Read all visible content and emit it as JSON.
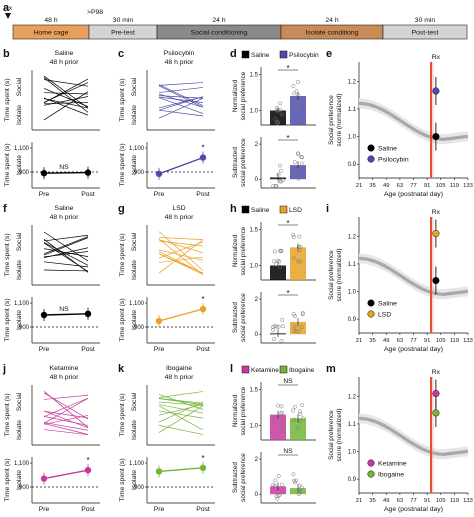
{
  "timeline": {
    "rx": "Rx",
    "p98": ">P98",
    "segments": [
      {
        "duration": "48 h",
        "label": "Home cage",
        "color": "#e8a05a"
      },
      {
        "duration": "30 min",
        "label": "Pre-test",
        "color": "#d4d4d4"
      },
      {
        "duration": "24 h",
        "label": "Social conditioning",
        "color": "#8a8a8a"
      },
      {
        "duration": "24 h",
        "label": "Isolate conditiong",
        "color": "#c98b57"
      },
      {
        "duration": "30 min",
        "label": "Post-test",
        "color": "#d4d4d4"
      }
    ]
  },
  "panel_letters": [
    "a",
    "b",
    "c",
    "d",
    "e",
    "f",
    "g",
    "h",
    "i",
    "j",
    "k",
    "l",
    "m"
  ],
  "common": {
    "top_ylabel": "Time spent (s)",
    "social": "Social",
    "isolate": "Isolate",
    "pre": "Pre",
    "post": "Post",
    "ns": "NS",
    "star": "*",
    "norm_ylabel": [
      "Normalized",
      "social preference"
    ],
    "sub_ylabel": [
      "Subtracted",
      "social preference"
    ],
    "bottom_ticks": [
      "1,100",
      "900"
    ],
    "bar_tick_top": [
      "1.5",
      "1.0"
    ],
    "bar_tick_bot": [
      "2",
      "0"
    ],
    "ylabel_sp": [
      "Social preference",
      "score (normalized)"
    ],
    "xlabel": "Age (postnatal day)",
    "x_ticks": [
      "21",
      "35",
      "49",
      "63",
      "77",
      "91",
      "105",
      "119",
      "133"
    ],
    "y_ticks": [
      "1.2",
      "1.1",
      "1.0",
      "0.9"
    ]
  },
  "rows": [
    {
      "left": {
        "title": [
          "Saline",
          "48 h prior"
        ],
        "color": "#000000",
        "pre": 890,
        "post": 895,
        "sig": "ns"
      },
      "right": {
        "title": [
          "Psilocybin",
          "48 h prior"
        ],
        "color": "#4d4bab",
        "pre": 885,
        "post": 1020,
        "sig": "star"
      },
      "bars": {
        "legend": [
          "Saline",
          "Psilocybin"
        ],
        "colors": [
          "#000000",
          "#4d4bab"
        ],
        "norm": [
          1.0,
          1.2
        ],
        "sub": [
          0.1,
          0.8
        ],
        "sig_norm": "star",
        "sig_sub": "star"
      },
      "scatter": {
        "chart_type": "scatter",
        "points": [
          {
            "name": "Saline",
            "age": 100,
            "score": 1.0,
            "color": "#000000"
          },
          {
            "name": "Psilocybin",
            "age": 100,
            "score": 1.165,
            "color": "#4d4bab"
          }
        ],
        "rx": "Rx",
        "ylim": [
          0.85,
          1.27
        ],
        "xlim": [
          21,
          133
        ]
      }
    },
    {
      "left": {
        "title": [
          "Saline",
          "48 h prior"
        ],
        "color": "#000000",
        "pre": 1000,
        "post": 1010,
        "sig": "ns"
      },
      "right": {
        "title": [
          "LSD",
          "48 h prior"
        ],
        "color": "#e8a224",
        "pre": 950,
        "post": 1050,
        "sig": "star"
      },
      "bars": {
        "legend": [
          "Saline",
          "LSD"
        ],
        "colors": [
          "#000000",
          "#e8a224"
        ],
        "norm": [
          1.0,
          1.25
        ],
        "sub": [
          0.05,
          0.7
        ],
        "sig_norm": "star",
        "sig_sub": "star"
      },
      "scatter": {
        "chart_type": "scatter",
        "points": [
          {
            "name": "Saline",
            "age": 100,
            "score": 1.04,
            "color": "#000000"
          },
          {
            "name": "LSD",
            "age": 100,
            "score": 1.21,
            "color": "#e8a224"
          }
        ],
        "rx": "Rx",
        "ylim": [
          0.85,
          1.27
        ],
        "xlim": [
          21,
          133
        ]
      }
    },
    {
      "left": {
        "title": [
          "Ketamine",
          "48 h prior"
        ],
        "color": "#c53a9e",
        "pre": 970,
        "post": 1040,
        "sig": "star"
      },
      "right": {
        "title": [
          "Ibogaine",
          "48 h prior"
        ],
        "color": "#72b537",
        "pre": 1030,
        "post": 1060,
        "sig": "star"
      },
      "bars": {
        "legend": [
          "Ketamine",
          "Ibogaine"
        ],
        "colors": [
          "#c53a9e",
          "#72b537"
        ],
        "norm": [
          1.15,
          1.1
        ],
        "sub": [
          0.45,
          0.35
        ],
        "sig_norm": "ns",
        "sig_sub": "ns"
      },
      "scatter": {
        "chart_type": "scatter",
        "points": [
          {
            "name": "Ketamine",
            "age": 100,
            "score": 1.21,
            "color": "#c53a9e"
          },
          {
            "name": "Ibogaine",
            "age": 100,
            "score": 1.14,
            "color": "#72b537"
          }
        ],
        "rx": "Rx",
        "ylim": [
          0.85,
          1.27
        ],
        "xlim": [
          21,
          133
        ]
      }
    }
  ],
  "chart_data": [
    {
      "type": "scatter",
      "title": "e",
      "x": [
        100,
        100
      ],
      "series": [
        {
          "name": "Saline",
          "values": [
            1.0
          ]
        },
        {
          "name": "Psilocybin",
          "values": [
            1.165
          ]
        }
      ],
      "xlabel": "Age (postnatal day)",
      "ylabel": "Social preference score (normalized)",
      "xlim": [
        21,
        133
      ],
      "ylim": [
        0.85,
        1.27
      ]
    },
    {
      "type": "scatter",
      "title": "i",
      "x": [
        100,
        100
      ],
      "series": [
        {
          "name": "Saline",
          "values": [
            1.04
          ]
        },
        {
          "name": "LSD",
          "values": [
            1.21
          ]
        }
      ],
      "xlabel": "Age (postnatal day)",
      "ylabel": "Social preference score (normalized)",
      "xlim": [
        21,
        133
      ],
      "ylim": [
        0.85,
        1.27
      ]
    },
    {
      "type": "scatter",
      "title": "m",
      "x": [
        100,
        100
      ],
      "series": [
        {
          "name": "Ketamine",
          "values": [
            1.21
          ]
        },
        {
          "name": "Ibogaine",
          "values": [
            1.14
          ]
        }
      ],
      "xlabel": "Age (postnatal day)",
      "ylabel": "Social preference score (normalized)",
      "xlim": [
        21,
        133
      ],
      "ylim": [
        0.85,
        1.27
      ]
    }
  ]
}
